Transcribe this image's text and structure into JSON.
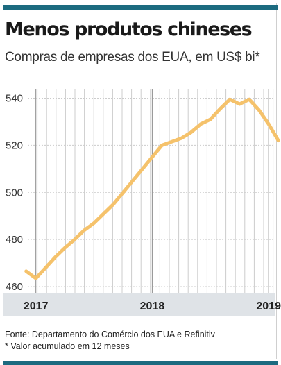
{
  "title": "Menos produtos chineses",
  "subtitle": "Compras de empresas dos EUA, em US$ bi*",
  "source": "Fonte: Departamento do Comércio dos EUA e Refinitiv",
  "footnote": "* Valor acumulado em 12 meses",
  "colors": {
    "line": "#f5c26b",
    "bar": "#1c6b80",
    "axis_band": "#dfe3e7",
    "grid": "#cccccc"
  },
  "chart_data": {
    "type": "line",
    "title": "Menos produtos chineses",
    "subtitle": "Compras de empresas dos EUA, em US$ bi*",
    "xlabel": "",
    "ylabel": "",
    "ylim": [
      460,
      540
    ],
    "y_ticks": [
      460,
      480,
      500,
      520,
      540
    ],
    "x_tick_labels": [
      {
        "label": "2017",
        "x": "2017-01"
      },
      {
        "label": "2018",
        "x": "2018-01"
      },
      {
        "label": "2019",
        "x": "2019-01"
      }
    ],
    "grid": true,
    "series": [
      {
        "x": [
          "2016-12",
          "2017-01",
          "2017-02",
          "2017-03",
          "2017-04",
          "2017-05",
          "2017-06",
          "2017-07",
          "2017-08",
          "2017-09",
          "2017-10",
          "2017-11",
          "2017-12",
          "2018-01",
          "2018-02",
          "2018-03",
          "2018-04",
          "2018-05",
          "2018-06",
          "2018-07",
          "2018-08",
          "2018-09",
          "2018-10",
          "2018-11",
          "2018-12",
          "2019-01",
          "2019-02",
          "2019-03"
        ],
        "values": [
          466.5,
          463.5,
          468,
          472.5,
          476.5,
          480,
          484,
          487,
          491,
          495,
          500,
          505,
          510,
          515,
          520,
          521.5,
          523,
          525.5,
          529,
          531,
          535.5,
          539.5,
          537.5,
          539.5,
          535,
          529,
          522,
          null
        ]
      }
    ]
  }
}
